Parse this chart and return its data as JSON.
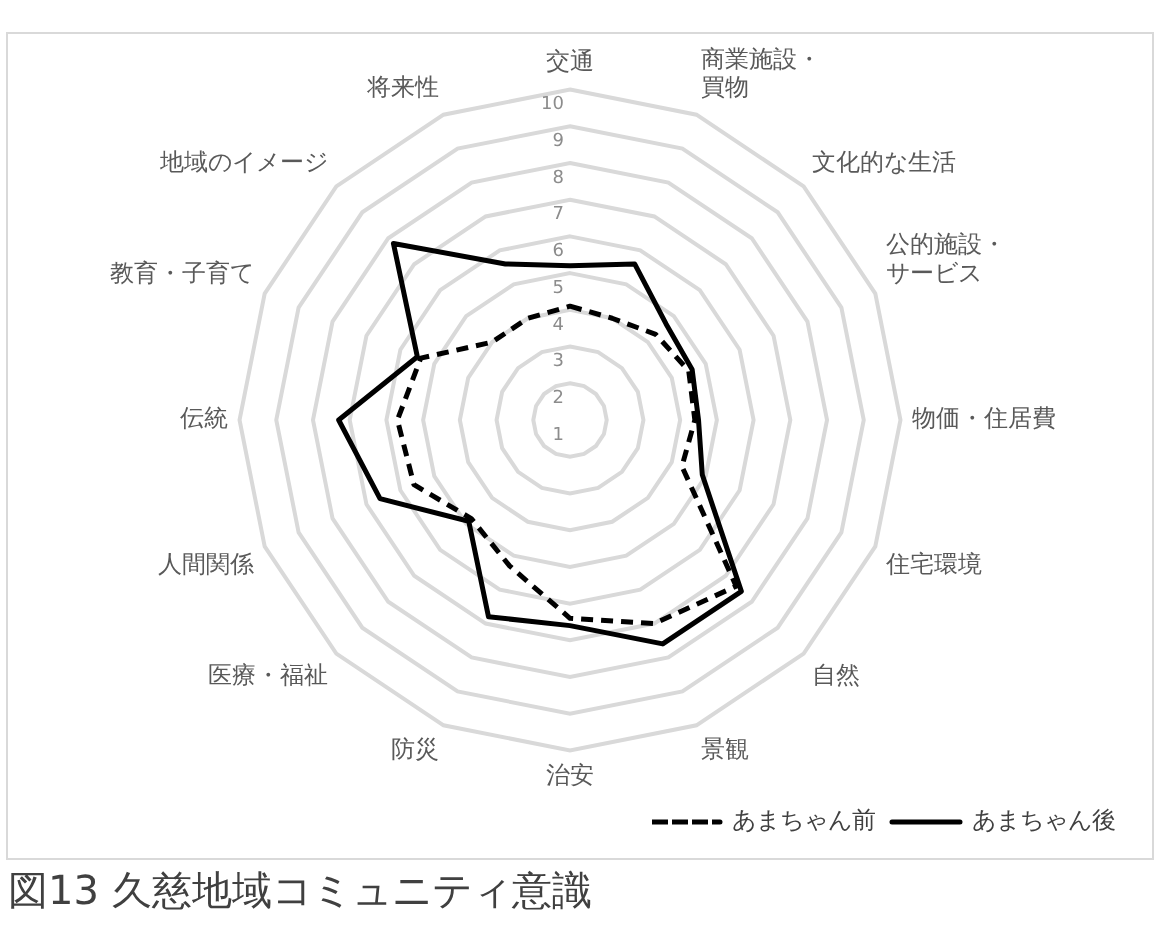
{
  "chart_data": {
    "type": "radar",
    "title": "図13 久慈地域コミュニティ意識",
    "categories": [
      "交通",
      "商業施設・買物",
      "文化的な生活",
      "公的施設・サービス",
      "物価・住居費",
      "住宅環境",
      "自然",
      "景観",
      "治安",
      "防災",
      "医療・福祉",
      "人間関係",
      "伝統",
      "教育・子育て",
      "地域のイメージ",
      "将来性"
    ],
    "series": [
      {
        "name": "あまちゃん前",
        "color": "#000000",
        "line_style": "dashed",
        "values": [
          4.1,
          4.0,
          4.3,
          4.5,
          4.4,
          4.3,
          7.4,
          7.0,
          6.4,
          5.3,
          4.8,
          5.6,
          5.7,
          5.4,
          4.0,
          4.0
        ]
      },
      {
        "name": "あまちゃん後",
        "color": "#000000",
        "line_style": "solid",
        "values": [
          5.2,
          5.6,
          4.7,
          4.6,
          4.5,
          4.9,
          7.6,
          7.6,
          6.6,
          6.8,
          4.9,
          6.6,
          7.3,
          5.5,
          7.8,
          5.6
        ]
      }
    ],
    "ylim": [
      1,
      10
    ],
    "yticks": [
      1,
      2,
      3,
      4,
      5,
      6,
      7,
      8,
      9,
      10
    ],
    "grid": true,
    "legend": "bottom right",
    "marker": "none"
  }
}
